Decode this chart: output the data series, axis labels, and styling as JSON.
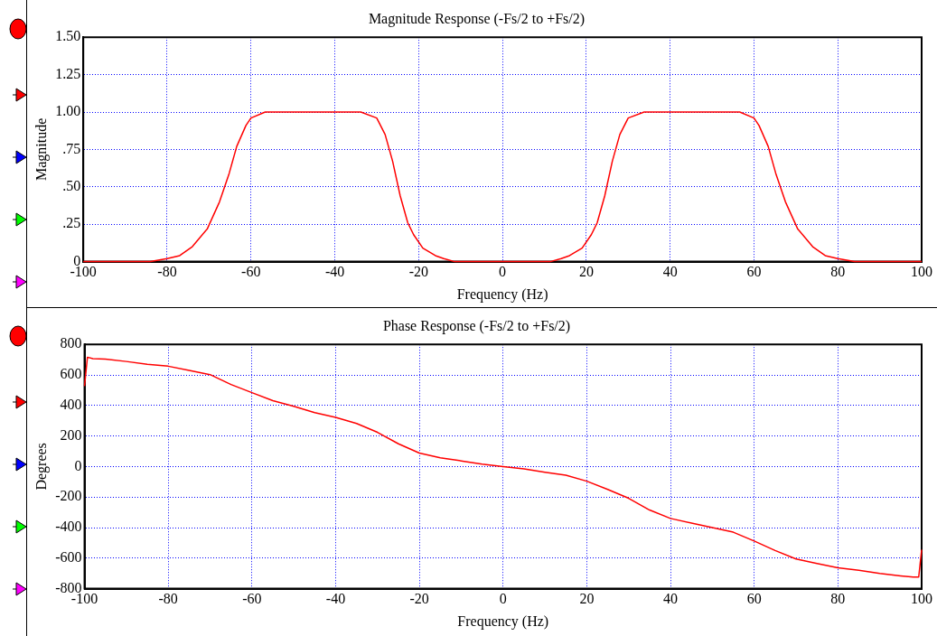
{
  "chart_data": [
    {
      "type": "line",
      "title": "Magnitude Response (-Fs/2 to +Fs/2)",
      "xlabel": "Frequency (Hz)",
      "ylabel": "Magnitude",
      "xlim": [
        -100,
        100
      ],
      "xticks": [
        -100,
        -80,
        -60,
        -40,
        -20,
        0,
        20,
        40,
        60,
        80,
        100
      ],
      "ylim": [
        0,
        1.5
      ],
      "yticks": [
        0,
        {
          "value": 0.25,
          "label": ".25"
        },
        {
          "value": 0.5,
          "label": ".50"
        },
        {
          "value": 0.75,
          "label": ".75"
        },
        {
          "value": 1,
          "label": "1.00"
        },
        {
          "value": 1.25,
          "label": "1.25"
        },
        {
          "value": 1.5,
          "label": "1.50"
        }
      ],
      "grid": true,
      "marker": "none",
      "series": [
        {
          "color": "#ff0000",
          "x": [
            -100,
            -84,
            -80,
            -77,
            -74,
            -70.4,
            -67.5,
            -65.2,
            -63.4,
            -61.2,
            -60,
            -56.6,
            -33.8,
            -30,
            -28,
            -26.2,
            -24.4,
            -22.6,
            -21.2,
            -19,
            -16,
            -14,
            -11.4,
            11.4,
            14,
            16,
            19,
            21.2,
            22.6,
            24.4,
            26.2,
            28,
            30,
            33.8,
            56.6,
            60,
            61.2,
            63.4,
            65.2,
            67.5,
            70.4,
            74,
            77,
            80,
            84,
            100
          ],
          "values": [
            0,
            0,
            0.02,
            0.04,
            0.1,
            0.22,
            0.4,
            0.59,
            0.77,
            0.91,
            0.96,
            1,
            1,
            0.96,
            0.85,
            0.67,
            0.44,
            0.26,
            0.18,
            0.09,
            0.04,
            0.02,
            0,
            0,
            0.02,
            0.04,
            0.09,
            0.18,
            0.26,
            0.44,
            0.67,
            0.85,
            0.96,
            1,
            1,
            0.96,
            0.91,
            0.77,
            0.59,
            0.4,
            0.22,
            0.1,
            0.04,
            0.02,
            0,
            0
          ]
        }
      ]
    },
    {
      "type": "line",
      "title": "Phase Response (-Fs/2 to +Fs/2)",
      "xlabel": "Frequency (Hz)",
      "ylabel": "Degrees",
      "xlim": [
        -100,
        100
      ],
      "xticks": [
        -100,
        -80,
        -60,
        -40,
        -20,
        0,
        20,
        40,
        60,
        80,
        100
      ],
      "ylim": [
        -800,
        800
      ],
      "yticks": [
        -800,
        -600,
        -400,
        -200,
        0,
        200,
        400,
        600,
        800
      ],
      "grid": true,
      "marker": "none",
      "series": [
        {
          "color": "#ff0000",
          "x": [
            -100,
            -99.3,
            -98,
            -95,
            -90,
            -85,
            -80,
            -75,
            -70,
            -65,
            -60,
            -55,
            -50,
            -45,
            -40,
            -35,
            -30,
            -25,
            -20,
            -15,
            -10,
            -5,
            0,
            5,
            10,
            15,
            20,
            25,
            30,
            35,
            40,
            45,
            50,
            55,
            60,
            65,
            70,
            75,
            80,
            85,
            90,
            95,
            98,
            99.3,
            100
          ],
          "values": [
            527,
            716,
            706,
            704,
            688,
            669,
            657,
            629,
            602,
            537,
            484,
            431,
            394,
            353,
            322,
            282,
            224,
            149,
            88,
            57,
            37,
            16,
            0,
            -16,
            -37,
            -57,
            -96,
            -150,
            -208,
            -285,
            -340,
            -370,
            -400,
            -430,
            -488,
            -550,
            -606,
            -635,
            -663,
            -680,
            -700,
            -716,
            -724,
            -724,
            -545
          ]
        }
      ]
    }
  ]
}
